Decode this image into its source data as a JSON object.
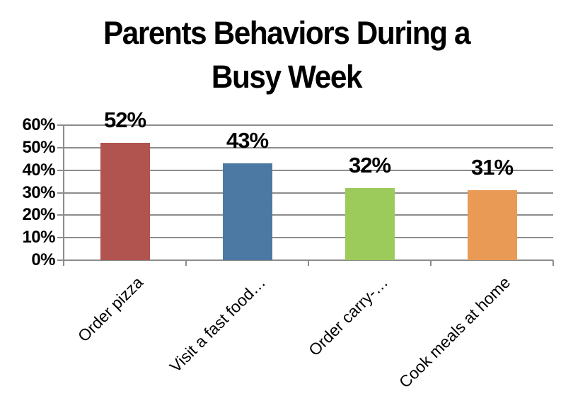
{
  "window": {
    "background_color": "#FFFFFF"
  },
  "title": {
    "line1": "Parents Behaviors During a",
    "line2": "Busy Week"
  },
  "chart_data": {
    "type": "bar",
    "title": "Parents Behaviors During a Busy Week",
    "categories": [
      "Order pizza",
      "Visit a fast food…",
      "Order carry-…",
      "Cook meals at home"
    ],
    "values": [
      52,
      43,
      32,
      31
    ],
    "data_labels": [
      "52%",
      "43%",
      "32%",
      "31%"
    ],
    "bar_colors": [
      "#B15450",
      "#4C79A3",
      "#9CCB5C",
      "#E99A55"
    ],
    "xlabel": "",
    "ylabel": "",
    "ylim": [
      0,
      60
    ],
    "ytick_step": 10,
    "ytick_labels": [
      "0%",
      "10%",
      "20%",
      "30%",
      "40%",
      "50%",
      "60%"
    ],
    "grid": true,
    "gridline_color": "#8C8C8C",
    "axis_color": "#8C8C8C",
    "text_color": "#000000",
    "legend_position": "none"
  }
}
